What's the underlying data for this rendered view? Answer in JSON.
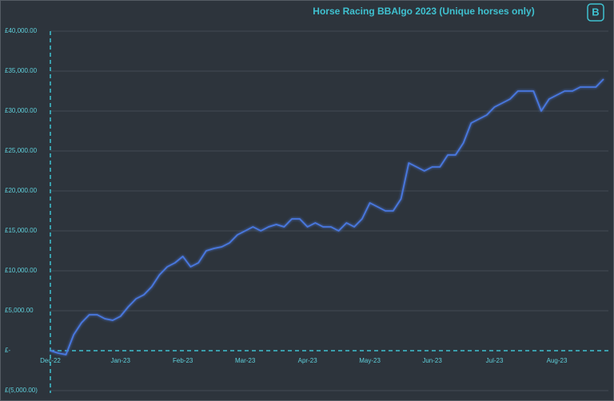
{
  "chart_data": {
    "type": "line",
    "title": "Horse Racing BBAlgo 2023 (Unique horses only)",
    "categories": [
      "Dec-22",
      null,
      null,
      null,
      null,
      null,
      null,
      null,
      null,
      "Jan-23",
      null,
      null,
      null,
      null,
      null,
      null,
      null,
      "Feb-23",
      null,
      null,
      null,
      null,
      null,
      null,
      null,
      "Mar-23",
      null,
      null,
      null,
      null,
      null,
      null,
      null,
      "Apr-23",
      null,
      null,
      null,
      null,
      null,
      null,
      null,
      "May-23",
      null,
      null,
      null,
      null,
      null,
      null,
      null,
      "Jun-23",
      null,
      null,
      null,
      null,
      null,
      null,
      null,
      "Jul-23",
      null,
      null,
      null,
      null,
      null,
      null,
      null,
      "Aug-23",
      null,
      null,
      null,
      null,
      null,
      null
    ],
    "values": [
      0,
      -300,
      -500,
      2000,
      3500,
      4500,
      4500,
      4000,
      3800,
      4300,
      5500,
      6500,
      7000,
      8000,
      9500,
      10500,
      11000,
      11800,
      10500,
      11000,
      12500,
      12800,
      13000,
      13500,
      14500,
      15000,
      15500,
      15000,
      15500,
      15800,
      15500,
      16500,
      16500,
      15500,
      16000,
      15500,
      15500,
      15000,
      16000,
      15500,
      16500,
      18500,
      18000,
      17500,
      17500,
      19000,
      23500,
      23000,
      22500,
      23000,
      23000,
      24500,
      24500,
      26000,
      28500,
      29000,
      29500,
      30500,
      31000,
      31500,
      32500,
      32500,
      32500,
      30000,
      31500,
      32000,
      32500,
      32500,
      33000,
      33000,
      33000,
      34000
    ],
    "color": "#4a78e0",
    "ylim": [
      -5000,
      40000
    ],
    "yticks": [
      {
        "value": -5000,
        "label": "£(5,000.00)"
      },
      {
        "value": 0,
        "label": "£-"
      },
      {
        "value": 5000,
        "label": "£5,000.00"
      },
      {
        "value": 10000,
        "label": "£10,000.00"
      },
      {
        "value": 15000,
        "label": "£15,000.00"
      },
      {
        "value": 20000,
        "label": "£20,000.00"
      },
      {
        "value": 25000,
        "label": "£25,000.00"
      },
      {
        "value": 30000,
        "label": "£30,000.00"
      },
      {
        "value": 35000,
        "label": "£35,000.00"
      },
      {
        "value": 40000,
        "label": "£40,000.00"
      }
    ],
    "grid": true
  }
}
